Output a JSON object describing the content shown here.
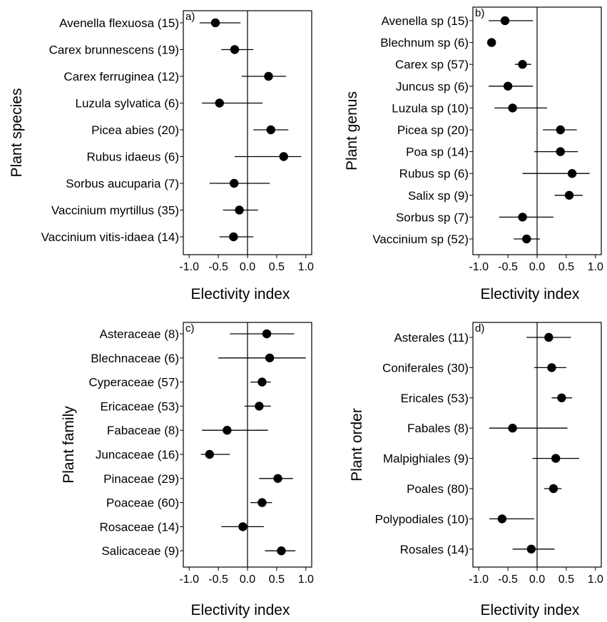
{
  "chart_data": [
    {
      "type": "forest",
      "panel_label": "a)",
      "ylabel": "Plant species",
      "xlabel": "Electivity index",
      "xlim": [
        -1.0,
        1.0
      ],
      "xticks": [
        "-1.0",
        "-0.5",
        "0.0",
        "0.5",
        "1.0"
      ],
      "reference_line": 0,
      "categories": [
        "Avenella flexuosa (15)",
        "Carex brunnescens (19)",
        "Carex ferruginea (12)",
        "Luzula sylvatica (6)",
        "Picea abies (20)",
        "Rubus idaeus (6)",
        "Sorbus aucuparia (7)",
        "Vaccinium myrtillus (35)",
        "Vaccinium vitis-idaea (14)"
      ],
      "values": [
        -0.55,
        -0.22,
        0.36,
        -0.48,
        0.4,
        0.62,
        -0.23,
        -0.14,
        -0.24
      ],
      "lower": [
        -0.82,
        -0.45,
        -0.1,
        -0.78,
        0.1,
        -0.22,
        -0.65,
        -0.42,
        -0.48
      ],
      "upper": [
        -0.12,
        0.1,
        0.66,
        0.26,
        0.7,
        0.92,
        0.38,
        0.18,
        0.1
      ]
    },
    {
      "type": "forest",
      "panel_label": "b)",
      "ylabel": "Plant genus",
      "xlabel": "Electivity index",
      "xlim": [
        -1.0,
        1.0
      ],
      "xticks": [
        "-1.0",
        "-0.5",
        "0.0",
        "0.5",
        "1.0"
      ],
      "reference_line": 0,
      "categories": [
        "Avenella sp (15)",
        "Blechnum sp (6)",
        "Carex sp (57)",
        "Juncus sp (6)",
        "Luzula sp (10)",
        "Picea sp (20)",
        "Poa sp (14)",
        "Rubus sp (6)",
        "Salix sp (9)",
        "Sorbus sp (7)",
        "Vaccinium sp (52)"
      ],
      "values": [
        -0.55,
        -0.78,
        -0.25,
        -0.5,
        -0.42,
        0.4,
        0.4,
        0.6,
        0.55,
        -0.25,
        -0.18
      ],
      "lower": [
        -0.83,
        -0.78,
        -0.38,
        -0.83,
        -0.73,
        0.1,
        -0.05,
        -0.25,
        0.3,
        -0.65,
        -0.4
      ],
      "upper": [
        -0.07,
        -0.78,
        -0.1,
        -0.07,
        0.17,
        0.68,
        0.7,
        0.9,
        0.78,
        0.28,
        0.05
      ]
    },
    {
      "type": "forest",
      "panel_label": "c)",
      "ylabel": "Plant family",
      "xlabel": "Electivity index",
      "xlim": [
        -1.0,
        1.0
      ],
      "xticks": [
        "-1.0",
        "-0.5",
        "0.0",
        "0.5",
        "1.0"
      ],
      "reference_line": 0,
      "categories": [
        "Asteraceae (8)",
        "Blechnaceae (6)",
        "Cyperaceae (57)",
        "Ericaceae (53)",
        "Fabaceae (8)",
        "Juncaceae (16)",
        "Pinaceae (29)",
        "Poaceae (60)",
        "Rosaceae (14)",
        "Salicaceae (9)"
      ],
      "values": [
        0.33,
        0.38,
        0.25,
        0.2,
        -0.35,
        -0.65,
        0.52,
        0.25,
        -0.08,
        0.58
      ],
      "lower": [
        -0.3,
        -0.5,
        0.05,
        -0.05,
        -0.78,
        -0.8,
        0.2,
        0.05,
        -0.45,
        0.3
      ],
      "upper": [
        0.8,
        1.0,
        0.4,
        0.4,
        0.35,
        -0.3,
        0.78,
        0.42,
        0.28,
        0.82
      ]
    },
    {
      "type": "forest",
      "panel_label": "d)",
      "ylabel": "Plant order",
      "xlabel": "Electivity index",
      "xlim": [
        -1.0,
        1.0
      ],
      "xticks": [
        "-1.0",
        "-0.5",
        "0.0",
        "0.5",
        "1.0"
      ],
      "reference_line": 0,
      "categories": [
        "Asterales (11)",
        "Coniferales (30)",
        "Ericales (53)",
        "Fabales (8)",
        "Malpighiales (9)",
        "Poales (80)",
        "Polypodiales (10)",
        "Rosales (14)"
      ],
      "values": [
        0.2,
        0.25,
        0.42,
        -0.42,
        0.32,
        0.28,
        -0.6,
        -0.1
      ],
      "lower": [
        -0.18,
        -0.05,
        0.25,
        -0.82,
        -0.08,
        0.12,
        -0.82,
        -0.42
      ],
      "upper": [
        0.58,
        0.5,
        0.6,
        0.52,
        0.72,
        0.42,
        -0.05,
        0.3
      ]
    }
  ]
}
